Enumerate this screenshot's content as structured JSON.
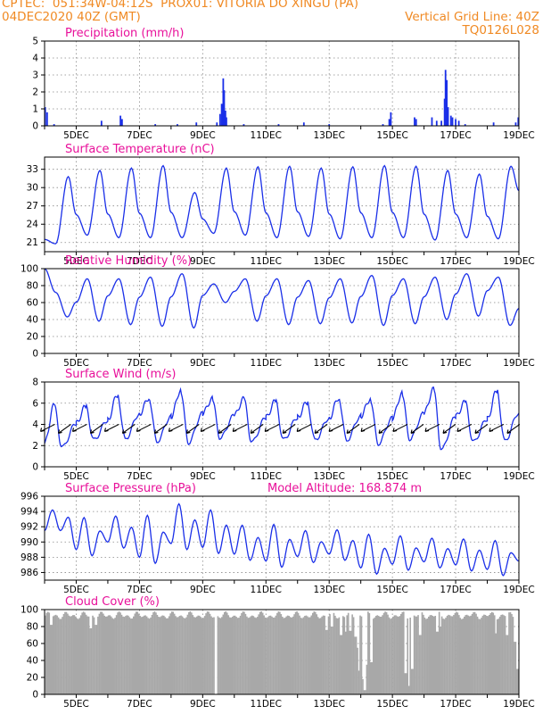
{
  "header": {
    "line1_left": "CPTEC:  051:34W-04:12S  PROX01: VITORIA DO XINGU (PA)",
    "line2_left": "04DEC2020 40Z (GMT)",
    "line2_right": "Vertical Grid Line: 40Z",
    "line3_right": "TQ0126L028",
    "color": "#f08a24"
  },
  "colors": {
    "series": "#1a2fe8",
    "title": "#e8109a",
    "cloud": "#a8a8a8",
    "grid": "#888888"
  },
  "x_axis": {
    "tick_labels": [
      "5DEC",
      "7DEC",
      "9DEC",
      "11DEC",
      "13DEC",
      "15DEC",
      "17DEC",
      "19DEC"
    ],
    "start_date": "04DEC2020",
    "days_span": 15
  },
  "chart_data": [
    {
      "type": "bar",
      "title": "Precipitation (mm/h)",
      "ylim": [
        0,
        5
      ],
      "yticks": [
        0,
        1,
        2,
        3,
        4,
        5
      ],
      "events": [
        {
          "day": 0.02,
          "value": 1.1
        },
        {
          "day": 0.08,
          "value": 0.8
        },
        {
          "day": 0.3,
          "value": 0.1
        },
        {
          "day": 1.8,
          "value": 0.3
        },
        {
          "day": 2.4,
          "value": 0.6
        },
        {
          "day": 2.45,
          "value": 0.4
        },
        {
          "day": 3.5,
          "value": 0.1
        },
        {
          "day": 4.2,
          "value": 0.1
        },
        {
          "day": 4.8,
          "value": 0.2
        },
        {
          "day": 5.45,
          "value": 0.2
        },
        {
          "day": 5.55,
          "value": 0.7
        },
        {
          "day": 5.6,
          "value": 1.3
        },
        {
          "day": 5.65,
          "value": 2.8
        },
        {
          "day": 5.68,
          "value": 2.1
        },
        {
          "day": 5.72,
          "value": 0.9
        },
        {
          "day": 5.75,
          "value": 0.5
        },
        {
          "day": 6.3,
          "value": 0.1
        },
        {
          "day": 7.4,
          "value": 0.1
        },
        {
          "day": 8.2,
          "value": 0.2
        },
        {
          "day": 9.0,
          "value": 0.1
        },
        {
          "day": 10.7,
          "value": 0.1
        },
        {
          "day": 10.9,
          "value": 0.4
        },
        {
          "day": 10.95,
          "value": 0.8
        },
        {
          "day": 11.7,
          "value": 0.5
        },
        {
          "day": 11.75,
          "value": 0.4
        },
        {
          "day": 12.25,
          "value": 0.5
        },
        {
          "day": 12.4,
          "value": 0.3
        },
        {
          "day": 12.55,
          "value": 0.3
        },
        {
          "day": 12.65,
          "value": 1.6
        },
        {
          "day": 12.68,
          "value": 3.3
        },
        {
          "day": 12.72,
          "value": 2.7
        },
        {
          "day": 12.76,
          "value": 1.1
        },
        {
          "day": 12.85,
          "value": 0.6
        },
        {
          "day": 12.9,
          "value": 0.5
        },
        {
          "day": 13.0,
          "value": 0.4
        },
        {
          "day": 13.1,
          "value": 0.3
        },
        {
          "day": 13.3,
          "value": 0.1
        },
        {
          "day": 14.2,
          "value": 0.2
        },
        {
          "day": 14.9,
          "value": 0.2
        },
        {
          "day": 14.98,
          "value": 0.5
        }
      ]
    },
    {
      "type": "line",
      "title": "Surface Temperature (nC)",
      "ylim": [
        19.5,
        35
      ],
      "yticks": [
        21,
        24,
        27,
        30,
        33
      ],
      "start_value": 21.5,
      "daily": [
        {
          "tmin": 20.8,
          "tmax": 31.8
        },
        {
          "tmin": 22.2,
          "tmax": 32.8
        },
        {
          "tmin": 21.8,
          "tmax": 33.2
        },
        {
          "tmin": 21.8,
          "tmax": 33.6
        },
        {
          "tmin": 21.8,
          "tmax": 29.2
        },
        {
          "tmin": 22.5,
          "tmax": 33.2
        },
        {
          "tmin": 22.2,
          "tmax": 33.4
        },
        {
          "tmin": 21.8,
          "tmax": 33.5
        },
        {
          "tmin": 22.0,
          "tmax": 33.2
        },
        {
          "tmin": 21.6,
          "tmax": 33.4
        },
        {
          "tmin": 21.8,
          "tmax": 33.6
        },
        {
          "tmin": 21.8,
          "tmax": 33.5
        },
        {
          "tmin": 21.4,
          "tmax": 32.8
        },
        {
          "tmin": 21.8,
          "tmax": 32.2
        },
        {
          "tmin": 21.6,
          "tmax": 33.5
        }
      ]
    },
    {
      "type": "line",
      "title": "Relative Humidity (%)",
      "ylim": [
        0,
        100
      ],
      "yticks": [
        0,
        20,
        40,
        60,
        80,
        100
      ],
      "start_value": 100,
      "daily": [
        {
          "hmin": 43,
          "hmax": 72
        },
        {
          "hmin": 38,
          "hmax": 88
        },
        {
          "hmin": 34,
          "hmax": 88
        },
        {
          "hmin": 32,
          "hmax": 90
        },
        {
          "hmin": 30,
          "hmax": 94
        },
        {
          "hmin": 60,
          "hmax": 82
        },
        {
          "hmin": 38,
          "hmax": 88
        },
        {
          "hmin": 34,
          "hmax": 88
        },
        {
          "hmin": 35,
          "hmax": 86
        },
        {
          "hmin": 36,
          "hmax": 88
        },
        {
          "hmin": 33,
          "hmax": 92
        },
        {
          "hmin": 35,
          "hmax": 88
        },
        {
          "hmin": 40,
          "hmax": 90
        },
        {
          "hmin": 44,
          "hmax": 94
        },
        {
          "hmin": 33,
          "hmax": 90
        }
      ],
      "end_value": 53
    },
    {
      "type": "line",
      "title": "Surface Wind (m/s)",
      "ylim": [
        0,
        8
      ],
      "yticks": [
        0,
        2,
        4,
        6,
        8
      ],
      "daily": [
        {
          "wmin": 1.8,
          "wmax": 5.8
        },
        {
          "wmin": 2.5,
          "wmax": 5.7
        },
        {
          "wmin": 2.6,
          "wmax": 6.8
        },
        {
          "wmin": 2.4,
          "wmax": 6.5
        },
        {
          "wmin": 2.3,
          "wmax": 7.2
        },
        {
          "wmin": 2.7,
          "wmax": 6.4
        },
        {
          "wmin": 2.3,
          "wmax": 6.4
        },
        {
          "wmin": 2.5,
          "wmax": 6.2
        },
        {
          "wmin": 2.5,
          "wmax": 6.1
        },
        {
          "wmin": 2.5,
          "wmax": 6.5
        },
        {
          "wmin": 2.2,
          "wmax": 6.4
        },
        {
          "wmin": 2.6,
          "wmax": 6.9
        },
        {
          "wmin": 1.6,
          "wmax": 7.3
        },
        {
          "wmin": 2.3,
          "wmax": 6.1
        },
        {
          "wmin": 2.4,
          "wmax": 7.2
        }
      ],
      "vector_count": 30
    },
    {
      "type": "line",
      "title": "Surface Pressure (hPa)",
      "annotation": "Model Altitude: 168.874 m",
      "ylim": [
        985,
        996
      ],
      "yticks": [
        986,
        988,
        990,
        992,
        994,
        996
      ],
      "daily": [
        {
          "pmin": 991.5,
          "pmax": 994.2
        },
        {
          "pmin": 988.2,
          "pmax": 993.2
        },
        {
          "pmin": 989.2,
          "pmax": 993.4
        },
        {
          "pmin": 987.2,
          "pmax": 993.5
        },
        {
          "pmin": 989.0,
          "pmax": 995.0
        },
        {
          "pmin": 988.5,
          "pmax": 994.2
        },
        {
          "pmin": 987.6,
          "pmax": 992.2
        },
        {
          "pmin": 986.7,
          "pmax": 992.3
        },
        {
          "pmin": 987.3,
          "pmax": 991.5
        },
        {
          "pmin": 987.6,
          "pmax": 991.6
        },
        {
          "pmin": 985.8,
          "pmax": 991.0
        },
        {
          "pmin": 986.3,
          "pmax": 990.8
        },
        {
          "pmin": 986.6,
          "pmax": 990.5
        },
        {
          "pmin": 986.2,
          "pmax": 990.4
        },
        {
          "pmin": 985.6,
          "pmax": 990.2
        }
      ],
      "end_value": 987.5
    },
    {
      "type": "area",
      "title": "Cloud Cover (%)",
      "ylim": [
        0,
        100
      ],
      "yticks": [
        0,
        20,
        40,
        60,
        80,
        100
      ],
      "baseline_range": [
        88,
        98
      ],
      "dips": [
        {
          "day": 0.2,
          "value": 82
        },
        {
          "day": 1.45,
          "value": 78
        },
        {
          "day": 1.6,
          "value": 82
        },
        {
          "day": 5.4,
          "value": 0
        },
        {
          "day": 8.9,
          "value": 76
        },
        {
          "day": 9.05,
          "value": 80
        },
        {
          "day": 9.35,
          "value": 70
        },
        {
          "day": 9.5,
          "value": 74
        },
        {
          "day": 9.65,
          "value": 75
        },
        {
          "day": 9.8,
          "value": 68
        },
        {
          "day": 9.88,
          "value": 55
        },
        {
          "day": 9.92,
          "value": 28
        },
        {
          "day": 10.05,
          "value": 18
        },
        {
          "day": 10.1,
          "value": 5
        },
        {
          "day": 10.15,
          "value": 35
        },
        {
          "day": 10.3,
          "value": 38
        },
        {
          "day": 11.4,
          "value": 25
        },
        {
          "day": 11.5,
          "value": 10
        },
        {
          "day": 11.6,
          "value": 30
        },
        {
          "day": 11.85,
          "value": 70
        },
        {
          "day": 12.4,
          "value": 74
        },
        {
          "day": 12.5,
          "value": 80
        },
        {
          "day": 14.25,
          "value": 72
        },
        {
          "day": 14.6,
          "value": 70
        },
        {
          "day": 14.85,
          "value": 62
        },
        {
          "day": 14.95,
          "value": 30
        }
      ]
    }
  ]
}
